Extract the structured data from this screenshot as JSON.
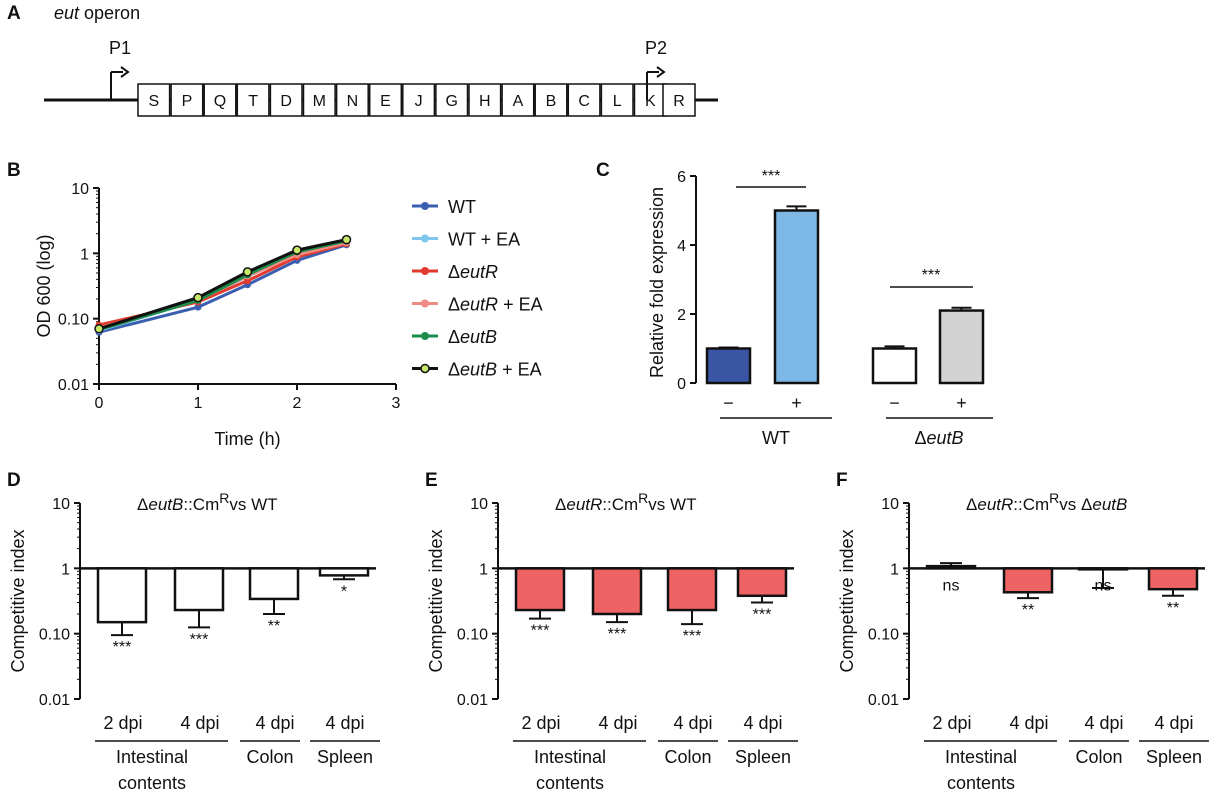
{
  "panels": {
    "A": {
      "label": "A",
      "title_italic": "eut",
      "title_rest": " operon",
      "promoters": [
        "P1",
        "P2"
      ],
      "genes_main": [
        "S",
        "P",
        "Q",
        "T",
        "D",
        "M",
        "N",
        "E",
        "J",
        "G",
        "H",
        "A",
        "B",
        "C",
        "L",
        "K"
      ],
      "gene_R": "R"
    },
    "B": {
      "label": "B"
    },
    "C": {
      "label": "C"
    },
    "D": {
      "label": "D"
    },
    "E": {
      "label": "E"
    },
    "F": {
      "label": "F"
    }
  },
  "chart_data": [
    {
      "panel": "B",
      "type": "line",
      "xlabel": "Time (h)",
      "ylabel": "OD 600 (log)",
      "yscale": "log",
      "xlim": [
        0,
        3
      ],
      "ylim": [
        0.01,
        10
      ],
      "xticks": [
        "0",
        "1",
        "2",
        "3"
      ],
      "yticks": [
        "0.01",
        "0.10",
        "1",
        "10"
      ],
      "x": [
        0,
        1,
        1.5,
        2,
        2.5
      ],
      "legend_position": "right",
      "series": [
        {
          "name": "WT",
          "name_italic": "",
          "name_suffix": "",
          "color": "#3a5fb0",
          "marker": "circle",
          "values": [
            0.062,
            0.15,
            0.33,
            0.78,
            1.35
          ]
        },
        {
          "name": "WT + EA",
          "name_italic": "",
          "name_suffix": "",
          "color": "#7fc6ec",
          "marker": "square",
          "values": [
            0.066,
            0.19,
            0.44,
            1.0,
            1.5
          ]
        },
        {
          "name": "Δ",
          "name_italic": "eutR",
          "name_suffix": "",
          "color": "#e23a2e",
          "marker": "triangle",
          "values": [
            0.08,
            0.18,
            0.38,
            0.88,
            1.4
          ]
        },
        {
          "name": "Δ",
          "name_italic": "eutR",
          "name_suffix": " + EA",
          "color": "#f08a82",
          "marker": "triangle",
          "values": [
            0.072,
            0.19,
            0.45,
            0.95,
            1.45
          ]
        },
        {
          "name": "Δ",
          "name_italic": "eutB",
          "name_suffix": "",
          "color": "#1b8c4a",
          "marker": "diamond",
          "values": [
            0.068,
            0.19,
            0.47,
            1.05,
            1.55
          ]
        },
        {
          "name": "Δ",
          "name_italic": "eutB",
          "name_suffix": " + EA",
          "color": "#111111",
          "marker": "circle-open-green",
          "values": [
            0.07,
            0.21,
            0.52,
            1.12,
            1.62
          ]
        }
      ]
    },
    {
      "panel": "C",
      "type": "bar",
      "ylabel": "Relative fold expression",
      "ylim": [
        0,
        6
      ],
      "yticks": [
        "0",
        "2",
        "4",
        "6"
      ],
      "categories": [
        "−",
        "+",
        "−",
        "+"
      ],
      "groups": [
        {
          "label": "WT",
          "italic": ""
        },
        {
          "label": "Δ",
          "italic": "eutB"
        }
      ],
      "values": [
        1.0,
        5.0,
        1.0,
        2.1
      ],
      "errors": [
        0.03,
        0.12,
        0.06,
        0.08
      ],
      "colors": [
        "#3a55a4",
        "#7db8e6",
        "#ffffff",
        "#d3d3d3"
      ],
      "significance": [
        "***",
        "***"
      ]
    },
    {
      "panel": "D",
      "type": "bar",
      "title_prefix": "Δ",
      "title_italic": "eutB",
      "title_mid": "::Cm",
      "title_sup": "R",
      "title_suffix": "vs WT",
      "title_italic2": "",
      "ylabel": "Competitive index",
      "yscale": "log",
      "ylim": [
        0.01,
        10
      ],
      "yticks": [
        "0.01",
        "0.10",
        "1",
        "10"
      ],
      "categories": [
        "2 dpi",
        "4 dpi",
        "4 dpi",
        "4 dpi"
      ],
      "groups": [
        "Intestinal contents",
        "Colon",
        "Spleen"
      ],
      "group_line1": [
        "Intestinal",
        "Colon",
        "Spleen"
      ],
      "group_line2": [
        "contents",
        "",
        ""
      ],
      "values": [
        0.15,
        0.23,
        0.34,
        0.78
      ],
      "error_ends": [
        0.095,
        0.125,
        0.2,
        0.68
      ],
      "bar_color": "#ffffff",
      "significance": [
        "***",
        "***",
        "**",
        "*"
      ]
    },
    {
      "panel": "E",
      "type": "bar",
      "title_prefix": "Δ",
      "title_italic": "eutR",
      "title_mid": "::Cm",
      "title_sup": "R",
      "title_suffix": "vs WT",
      "title_italic2": "",
      "ylabel": "Competitive index",
      "yscale": "log",
      "ylim": [
        0.01,
        10
      ],
      "yticks": [
        "0.01",
        "0.10",
        "1",
        "10"
      ],
      "categories": [
        "2 dpi",
        "4 dpi",
        "4 dpi",
        "4 dpi"
      ],
      "groups": [
        "Intestinal contents",
        "Colon",
        "Spleen"
      ],
      "group_line1": [
        "Intestinal",
        "Colon",
        "Spleen"
      ],
      "group_line2": [
        "contents",
        "",
        ""
      ],
      "values": [
        0.23,
        0.2,
        0.23,
        0.38
      ],
      "error_ends": [
        0.17,
        0.15,
        0.14,
        0.3
      ],
      "bar_color": "#ee6363",
      "significance": [
        "***",
        "***",
        "***",
        "***"
      ]
    },
    {
      "panel": "F",
      "type": "bar",
      "title_prefix": "Δ",
      "title_italic": "eutR",
      "title_mid": "::Cm",
      "title_sup": "R",
      "title_suffix": "vs Δ",
      "title_italic2": "eutB",
      "ylabel": "Competitive index",
      "yscale": "log",
      "ylim": [
        0.01,
        10
      ],
      "yticks": [
        "0.01",
        "0.10",
        "1",
        "10"
      ],
      "categories": [
        "2 dpi",
        "4 dpi",
        "4 dpi",
        "4 dpi"
      ],
      "groups": [
        "Intestinal contents",
        "Colon",
        "Spleen"
      ],
      "group_line1": [
        "Intestinal",
        "Colon",
        "Spleen"
      ],
      "group_line2": [
        "contents",
        "",
        ""
      ],
      "values": [
        1.08,
        0.43,
        0.97,
        0.48
      ],
      "error_ends": [
        1.2,
        0.35,
        0.5,
        0.38
      ],
      "bar_color": "#ee6363",
      "significance": [
        "ns",
        "**",
        "ns",
        "**"
      ]
    }
  ]
}
